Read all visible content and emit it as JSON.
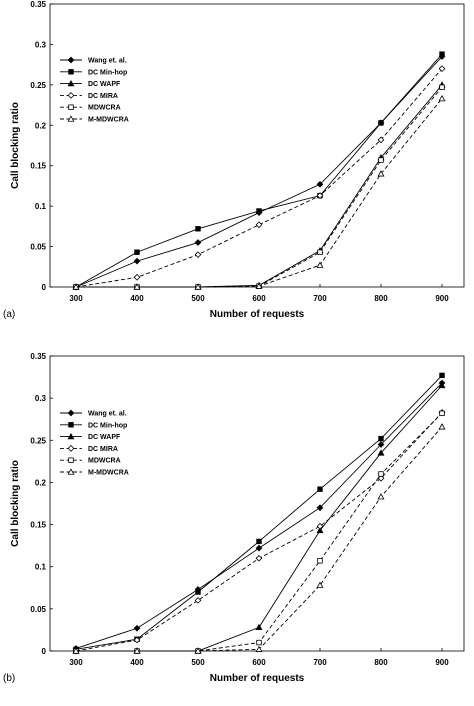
{
  "chart_data": [
    {
      "type": "line",
      "panel_label": "(a)",
      "xlabel": "Number of requests",
      "ylabel": "Call blocking ratio",
      "x": [
        300,
        400,
        500,
        600,
        700,
        800,
        900
      ],
      "xticks": [
        "300",
        "400",
        "500",
        "600",
        "700",
        "800",
        "900"
      ],
      "ylim": [
        0,
        0.35
      ],
      "yticks": [
        "0",
        "0.05",
        "0.1",
        "0.15",
        "0.2",
        "0.25",
        "0.3",
        "0.35"
      ],
      "legend_position": "upper-left",
      "grid": false,
      "series": [
        {
          "name": "Wang et. al.",
          "marker": "diamond-filled",
          "dash": "solid",
          "values": [
            0,
            0.032,
            0.055,
            0.092,
            0.127,
            0.203,
            0.285
          ]
        },
        {
          "name": "DC Min-hop",
          "marker": "square-filled",
          "dash": "solid",
          "values": [
            0,
            0.043,
            0.072,
            0.094,
            0.113,
            0.203,
            0.288
          ]
        },
        {
          "name": "DC WAPF",
          "marker": "triangle-filled",
          "dash": "solid",
          "values": [
            0,
            0,
            0,
            0.002,
            0.045,
            0.16,
            0.25
          ]
        },
        {
          "name": "DC MIRA",
          "marker": "diamond-open",
          "dash": "dashed",
          "values": [
            0,
            0.012,
            0.04,
            0.077,
            0.113,
            0.182,
            0.27
          ]
        },
        {
          "name": "MDWCRA",
          "marker": "square-open",
          "dash": "dashed",
          "values": [
            0,
            0,
            0,
            0.001,
            0.043,
            0.157,
            0.247
          ]
        },
        {
          "name": "M-MDWCRA",
          "marker": "triangle-open",
          "dash": "dashed",
          "values": [
            0,
            0,
            0,
            0.001,
            0.027,
            0.14,
            0.233
          ]
        }
      ]
    },
    {
      "type": "line",
      "panel_label": "(b)",
      "xlabel": "Number of requests",
      "ylabel": "Call blocking ratio",
      "x": [
        300,
        400,
        500,
        600,
        700,
        800,
        900
      ],
      "xticks": [
        "300",
        "400",
        "500",
        "600",
        "700",
        "800",
        "900"
      ],
      "ylim": [
        0,
        0.35
      ],
      "yticks": [
        "0",
        "0.05",
        "0.1",
        "0.15",
        "0.2",
        "0.25",
        "0.3",
        "0.35"
      ],
      "legend_position": "upper-left",
      "grid": false,
      "series": [
        {
          "name": "Wang et. al.",
          "marker": "diamond-filled",
          "dash": "solid",
          "values": [
            0.003,
            0.027,
            0.073,
            0.122,
            0.17,
            0.245,
            0.318
          ]
        },
        {
          "name": "DC Min-hop",
          "marker": "square-filled",
          "dash": "solid",
          "values": [
            0.002,
            0.014,
            0.07,
            0.13,
            0.192,
            0.252,
            0.327
          ]
        },
        {
          "name": "DC WAPF",
          "marker": "triangle-filled",
          "dash": "solid",
          "values": [
            0,
            0,
            0,
            0.028,
            0.143,
            0.235,
            0.315
          ]
        },
        {
          "name": "DC MIRA",
          "marker": "diamond-open",
          "dash": "dashed",
          "values": [
            0,
            0.013,
            0.06,
            0.11,
            0.148,
            0.205,
            0.283
          ]
        },
        {
          "name": "MDWCRA",
          "marker": "square-open",
          "dash": "dashed",
          "values": [
            0,
            0,
            0,
            0.01,
            0.107,
            0.21,
            0.282
          ]
        },
        {
          "name": "M-MDWCRA",
          "marker": "triangle-open",
          "dash": "dashed",
          "values": [
            0,
            0,
            0,
            0.002,
            0.078,
            0.183,
            0.266
          ]
        }
      ]
    }
  ]
}
